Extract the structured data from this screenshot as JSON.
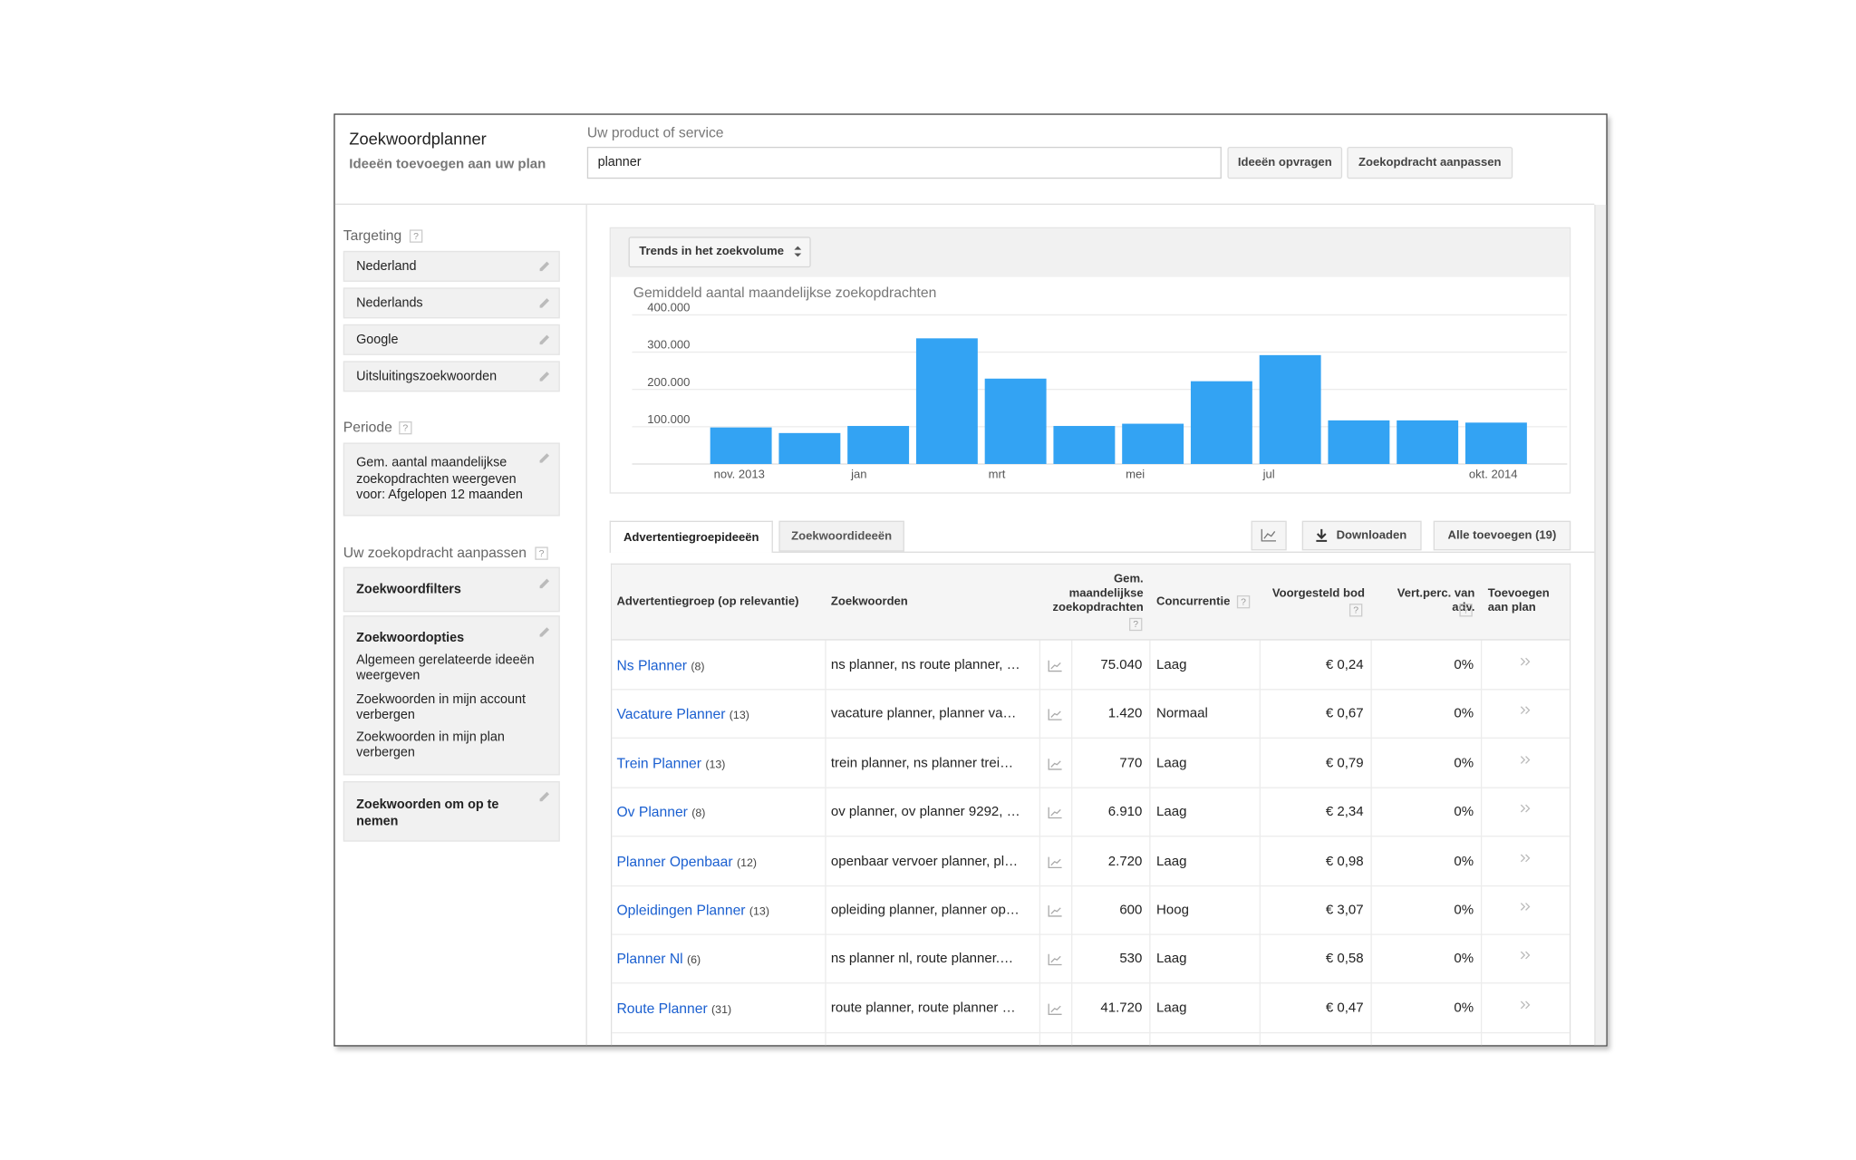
{
  "header": {
    "title": "Zoekwoordplanner",
    "subtitle": "Ideeën toevoegen aan uw plan"
  },
  "search": {
    "label": "Uw product of service",
    "query": "planner",
    "buttons": [
      "Ideeën opvragen",
      "Zoekopdracht aanpassen"
    ]
  },
  "sidebar": {
    "help": "?",
    "targeting_title": "Targeting",
    "targeting": [
      "Nederland",
      "Nederlands",
      "Google",
      "Uitsluitingszoekwoorden"
    ],
    "period_title": "Periode",
    "period": "Gem. aantal maandelijkse zoekopdrachten weergeven voor: Afgelopen 12 maanden",
    "adjust_title": "Uw zoekopdracht aanpassen",
    "filters": "Zoekwoordfilters",
    "options_title": "Zoekwoordopties",
    "options": [
      "Algemeen gerelateerde ideeën weergeven",
      "Zoekwoorden in mijn account verbergen",
      "Zoekwoorden in mijn plan verbergen"
    ],
    "include": "Zoekwoorden om op te nemen"
  },
  "chart_panel": {
    "dropdown": "Trends in het zoekvolume"
  },
  "chart_data": {
    "type": "bar",
    "title": "Gemiddeld aantal maandelijkse zoekopdrachten",
    "categories": [
      "nov. 2013",
      null,
      "jan",
      null,
      "mrt",
      null,
      "mei",
      null,
      "jul",
      null,
      null,
      "okt. 2014"
    ],
    "values": [
      98000,
      83000,
      102000,
      337000,
      229000,
      102000,
      108000,
      222000,
      292000,
      117000,
      117000,
      111000
    ],
    "color": "#33a3f3",
    "ylim": [
      0,
      400000
    ],
    "yticks": [
      {
        "value": 100000,
        "label": "100.000"
      },
      {
        "value": 200000,
        "label": "200.000"
      },
      {
        "value": 300000,
        "label": "300.000"
      },
      {
        "value": 400000,
        "label": "400.000"
      }
    ],
    "grid": true
  },
  "tabs": [
    "Advertentiegroepideeën",
    "Zoekwoordideeën"
  ],
  "actions": [
    "Downloaden",
    "Alle toevoegen (19)"
  ],
  "table": {
    "columns": [
      "Advertentiegroep (op relevantie)",
      "Zoekwoorden",
      "Gem. maandelijkse zoekopdrachten",
      "Concurrentie",
      "Voorgesteld bod",
      "Vert.perc. van adv.",
      "Toevoegen aan plan"
    ],
    "rows": [
      [
        "Ns Planner",
        "(8)",
        "ns planner, ns route planner, …",
        "75.040",
        "Laag",
        "€ 0,24",
        "0%"
      ],
      [
        "Vacature Planner",
        "(13)",
        "vacature planner, planner va…",
        "1.420",
        "Normaal",
        "€ 0,67",
        "0%"
      ],
      [
        "Trein Planner",
        "(13)",
        "trein planner, ns planner trei…",
        "770",
        "Laag",
        "€ 0,79",
        "0%"
      ],
      [
        "Ov Planner",
        "(8)",
        "ov planner, ov planner 9292, …",
        "6.910",
        "Laag",
        "€ 2,34",
        "0%"
      ],
      [
        "Planner Openbaar",
        "(12)",
        "openbaar vervoer planner, pl…",
        "2.720",
        "Laag",
        "€ 0,98",
        "0%"
      ],
      [
        "Opleidingen Planner",
        "(13)",
        "opleiding planner, planner op…",
        "600",
        "Hoog",
        "€ 3,07",
        "0%"
      ],
      [
        "Planner Nl",
        "(6)",
        "ns planner nl, route planner.…",
        "530",
        "Laag",
        "€ 0,58",
        "0%"
      ],
      [
        "Route Planner",
        "(31)",
        "route planner, route planner …",
        "41.720",
        "Laag",
        "€ 0,47",
        "0%"
      ]
    ]
  }
}
